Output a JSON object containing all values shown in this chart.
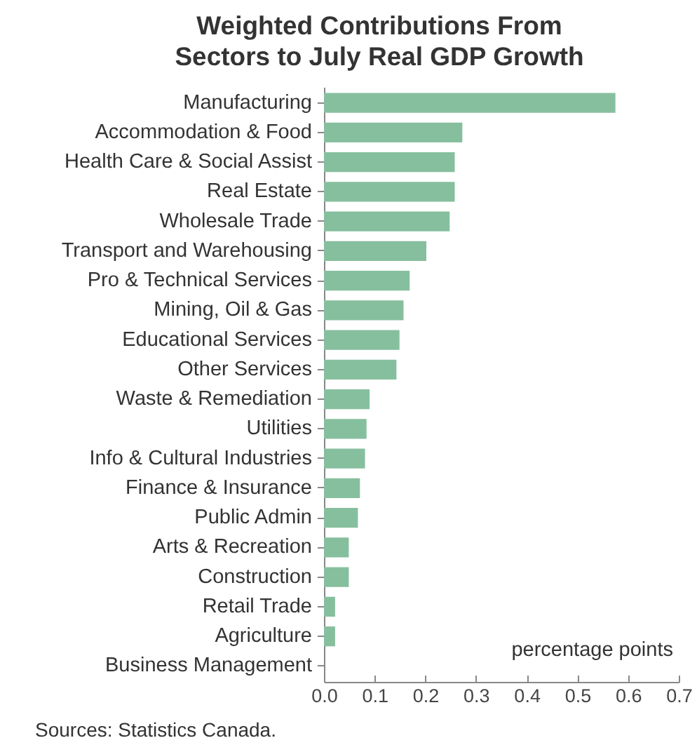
{
  "chart_data": {
    "type": "bar",
    "orientation": "horizontal",
    "title": "Weighted Contributions From Sectors to July Real GDP Growth",
    "categories": [
      "Manufacturing",
      "Accommodation & Food",
      "Health Care & Social Assist",
      "Real Estate",
      "Wholesale Trade",
      "Transport and Warehousing",
      "Pro & Technical Services",
      "Mining, Oil & Gas",
      "Educational Services",
      "Other Services",
      "Waste & Remediation",
      "Utilities",
      "Info & Cultural Industries",
      "Finance & Insurance",
      "Public Admin",
      "Arts & Recreation",
      "Construction",
      "Retail Trade",
      "Agriculture",
      "Business Management"
    ],
    "values": [
      0.575,
      0.273,
      0.258,
      0.258,
      0.248,
      0.202,
      0.169,
      0.157,
      0.149,
      0.143,
      0.09,
      0.084,
      0.081,
      0.071,
      0.067,
      0.049,
      0.049,
      0.022,
      0.022,
      0
    ],
    "color": "#86bf9e",
    "xlim": [
      0,
      0.7
    ],
    "xticks": [
      {
        "value": 0,
        "label": "0.0"
      },
      0.1,
      0.2,
      0.3,
      0.4,
      0.5,
      0.6,
      0.7
    ],
    "grid": false,
    "annotations": [
      "percentage points",
      "Sources: Statistics Canada."
    ]
  }
}
